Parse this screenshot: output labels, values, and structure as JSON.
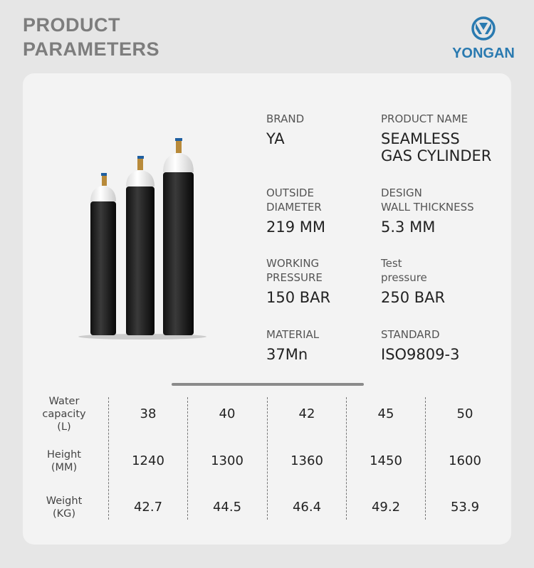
{
  "title": "PRODUCT\nPARAMETERS",
  "logo": {
    "name": "YONGAN",
    "color": "#2a7ab0"
  },
  "specs": [
    {
      "label": "BRAND",
      "value": "YA"
    },
    {
      "label": "PRODUCT NAME",
      "value": "SEAMLESS\nGAS CYLINDER"
    },
    {
      "label": "OUTSIDE\nDIAMETER",
      "value": "219 MM"
    },
    {
      "label": "DESIGN\nWALL THICKNESS",
      "value": "5.3 MM"
    },
    {
      "label": "WORKING\nPRESSURE",
      "value": "150 BAR"
    },
    {
      "label": "Test\npressure",
      "value": "250 BAR"
    },
    {
      "label": "MATERIAL",
      "value": "37Mn"
    },
    {
      "label": "STANDARD",
      "value": "ISO9809-3"
    }
  ],
  "table": {
    "rows": [
      {
        "label": "Water\ncapacity\n(L)",
        "values": [
          "38",
          "40",
          "42",
          "45",
          "50"
        ]
      },
      {
        "label": "Height\n(MM)",
        "values": [
          "1240",
          "1300",
          "1360",
          "1450",
          "1600"
        ]
      },
      {
        "label": "Weight\n(KG)",
        "values": [
          "42.7",
          "44.5",
          "46.4",
          "49.2",
          "53.9"
        ]
      }
    ]
  }
}
